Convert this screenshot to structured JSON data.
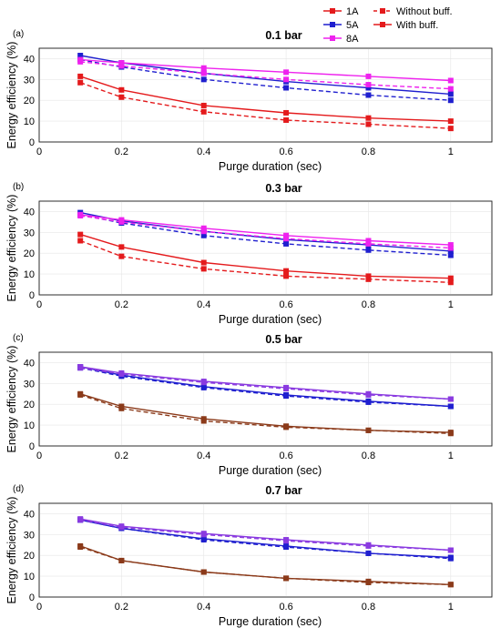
{
  "legend": {
    "entries": [
      {
        "label": "1A",
        "color": "#e41a1c",
        "style": "solid"
      },
      {
        "label": "Without buff.",
        "color": "#e41a1c",
        "style": "dashed"
      },
      {
        "label": "5A",
        "color": "#1f1fcf",
        "style": "solid"
      },
      {
        "label": "With buff.",
        "color": "#e41a1c",
        "style": "solid"
      },
      {
        "label": "8A",
        "color": "#ee22ee",
        "style": "solid"
      }
    ]
  },
  "colors": {
    "1A": "#e41a1c",
    "5A": "#1f1fcf",
    "8A": "#ee22ee",
    "brown": "#8b3a1a",
    "purple": "#8a3ae0"
  },
  "chart_data": [
    {
      "type": "line",
      "panel_label": "(a)",
      "title": "0.1 bar",
      "xlabel": "Purge duration (sec)",
      "ylabel": "Energy efficiency (%)",
      "x": [
        0.1,
        0.2,
        0.4,
        0.6,
        0.8,
        1.0
      ],
      "xlim": [
        0,
        1.1
      ],
      "ylim": [
        0,
        45
      ],
      "xticks": [
        "0",
        "0.2",
        "0.4",
        "0.6",
        "0.8",
        "1"
      ],
      "yticks": [
        "0",
        "10",
        "20",
        "30",
        "40"
      ],
      "grid": true,
      "series": [
        {
          "name": "1A With buff.",
          "color": "#e41a1c",
          "style": "solid",
          "values": [
            31.5,
            25,
            17.5,
            14,
            11.5,
            10
          ]
        },
        {
          "name": "1A Without buff.",
          "color": "#e41a1c",
          "style": "dashed",
          "values": [
            28.5,
            21.5,
            14.5,
            10.5,
            8.5,
            6.5
          ]
        },
        {
          "name": "5A With buff.",
          "color": "#1f1fcf",
          "style": "solid",
          "values": [
            41.5,
            38,
            33,
            29,
            26,
            23
          ]
        },
        {
          "name": "5A Without buff.",
          "color": "#1f1fcf",
          "style": "dashed",
          "values": [
            39.5,
            36,
            30,
            26,
            22.5,
            20
          ]
        },
        {
          "name": "8A With buff.",
          "color": "#ee22ee",
          "style": "solid",
          "values": [
            39.5,
            38,
            35.5,
            33.5,
            31.5,
            29.5
          ]
        },
        {
          "name": "8A Without buff.",
          "color": "#ee22ee",
          "style": "dashed",
          "values": [
            38.5,
            36.5,
            33,
            30,
            27.5,
            25.5
          ]
        }
      ]
    },
    {
      "type": "line",
      "panel_label": "(b)",
      "title": "0.3 bar",
      "xlabel": "Purge duration (sec)",
      "ylabel": "Energy efficiency (%)",
      "x": [
        0.1,
        0.2,
        0.4,
        0.6,
        0.8,
        1.0
      ],
      "xlim": [
        0,
        1.1
      ],
      "ylim": [
        0,
        45
      ],
      "xticks": [
        "0",
        "0.2",
        "0.4",
        "0.6",
        "0.8",
        "1"
      ],
      "yticks": [
        "0",
        "10",
        "20",
        "30",
        "40"
      ],
      "grid": true,
      "series": [
        {
          "name": "1A With buff.",
          "color": "#e41a1c",
          "style": "solid",
          "values": [
            29,
            23,
            15.5,
            11.5,
            9,
            8
          ]
        },
        {
          "name": "1A Without buff.",
          "color": "#e41a1c",
          "style": "dashed",
          "values": [
            26,
            18.5,
            12.5,
            9,
            7.5,
            6
          ]
        },
        {
          "name": "5A With buff.",
          "color": "#1f1fcf",
          "style": "solid",
          "values": [
            39.5,
            35.5,
            30.5,
            26.5,
            24,
            21
          ]
        },
        {
          "name": "5A Without buff.",
          "color": "#1f1fcf",
          "style": "dashed",
          "values": [
            38.5,
            34.5,
            28.5,
            24.5,
            21.5,
            19
          ]
        },
        {
          "name": "8A With buff.",
          "color": "#ee22ee",
          "style": "solid",
          "values": [
            38.5,
            36,
            32,
            28.5,
            26,
            24
          ]
        },
        {
          "name": "8A Without buff.",
          "color": "#ee22ee",
          "style": "dashed",
          "values": [
            38,
            35,
            30.5,
            27,
            24.5,
            22.5
          ]
        }
      ]
    },
    {
      "type": "line",
      "panel_label": "(c)",
      "title": "0.5 bar",
      "xlabel": "Purge duration (sec)",
      "ylabel": "Energy efficiency (%)",
      "x": [
        0.1,
        0.2,
        0.4,
        0.6,
        0.8,
        1.0
      ],
      "xlim": [
        0,
        1.1
      ],
      "ylim": [
        0,
        45
      ],
      "xticks": [
        "0",
        "0.2",
        "0.4",
        "0.6",
        "0.8",
        "1"
      ],
      "yticks": [
        "0",
        "10",
        "20",
        "30",
        "40"
      ],
      "grid": true,
      "series": [
        {
          "name": "1A With buff.",
          "color": "#8b3a1a",
          "style": "solid",
          "values": [
            25,
            19,
            13,
            9.5,
            7.5,
            6.5
          ]
        },
        {
          "name": "1A Without buff.",
          "color": "#8b3a1a",
          "style": "dashed",
          "values": [
            24.5,
            18,
            12,
            9,
            7.5,
            6
          ]
        },
        {
          "name": "5A With buff.",
          "color": "#1f1fcf",
          "style": "solid",
          "values": [
            38,
            34,
            28.5,
            24.5,
            21.5,
            19
          ]
        },
        {
          "name": "5A Without buff.",
          "color": "#1f1fcf",
          "style": "dashed",
          "values": [
            37.5,
            33.5,
            28,
            24,
            21,
            19
          ]
        },
        {
          "name": "8A With buff.",
          "color": "#8a3ae0",
          "style": "solid",
          "values": [
            38,
            35,
            31,
            28,
            25,
            22.5
          ]
        },
        {
          "name": "8A Without buff.",
          "color": "#8a3ae0",
          "style": "dashed",
          "values": [
            37.5,
            34.5,
            30.5,
            27.5,
            24.5,
            22.5
          ]
        }
      ]
    },
    {
      "type": "line",
      "panel_label": "(d)",
      "title": "0.7 bar",
      "xlabel": "Purge duration (sec)",
      "ylabel": "Energy efficiency (%)",
      "x": [
        0.1,
        0.2,
        0.4,
        0.6,
        0.8,
        1.0
      ],
      "xlim": [
        0,
        1.1
      ],
      "ylim": [
        0,
        45
      ],
      "xticks": [
        "0",
        "0.2",
        "0.4",
        "0.6",
        "0.8",
        "1"
      ],
      "yticks": [
        "0",
        "10",
        "20",
        "30",
        "40"
      ],
      "grid": true,
      "series": [
        {
          "name": "1A With buff.",
          "color": "#8b3a1a",
          "style": "solid",
          "values": [
            24.5,
            17.5,
            12,
            9,
            7.5,
            6
          ]
        },
        {
          "name": "1A Without buff.",
          "color": "#8b3a1a",
          "style": "dashed",
          "values": [
            24,
            17.5,
            12,
            9,
            7,
            6
          ]
        },
        {
          "name": "5A With buff.",
          "color": "#1f1fcf",
          "style": "solid",
          "values": [
            37,
            33,
            28,
            24.5,
            21,
            19
          ]
        },
        {
          "name": "5A Without buff.",
          "color": "#1f1fcf",
          "style": "dashed",
          "values": [
            37,
            33,
            27.5,
            24,
            21,
            18.5
          ]
        },
        {
          "name": "8A With buff.",
          "color": "#8a3ae0",
          "style": "solid",
          "values": [
            37.5,
            34,
            30.5,
            27.5,
            25,
            22.5
          ]
        },
        {
          "name": "8A Without buff.",
          "color": "#8a3ae0",
          "style": "dashed",
          "values": [
            37,
            33.5,
            30,
            27,
            24.5,
            22.5
          ]
        }
      ]
    }
  ]
}
